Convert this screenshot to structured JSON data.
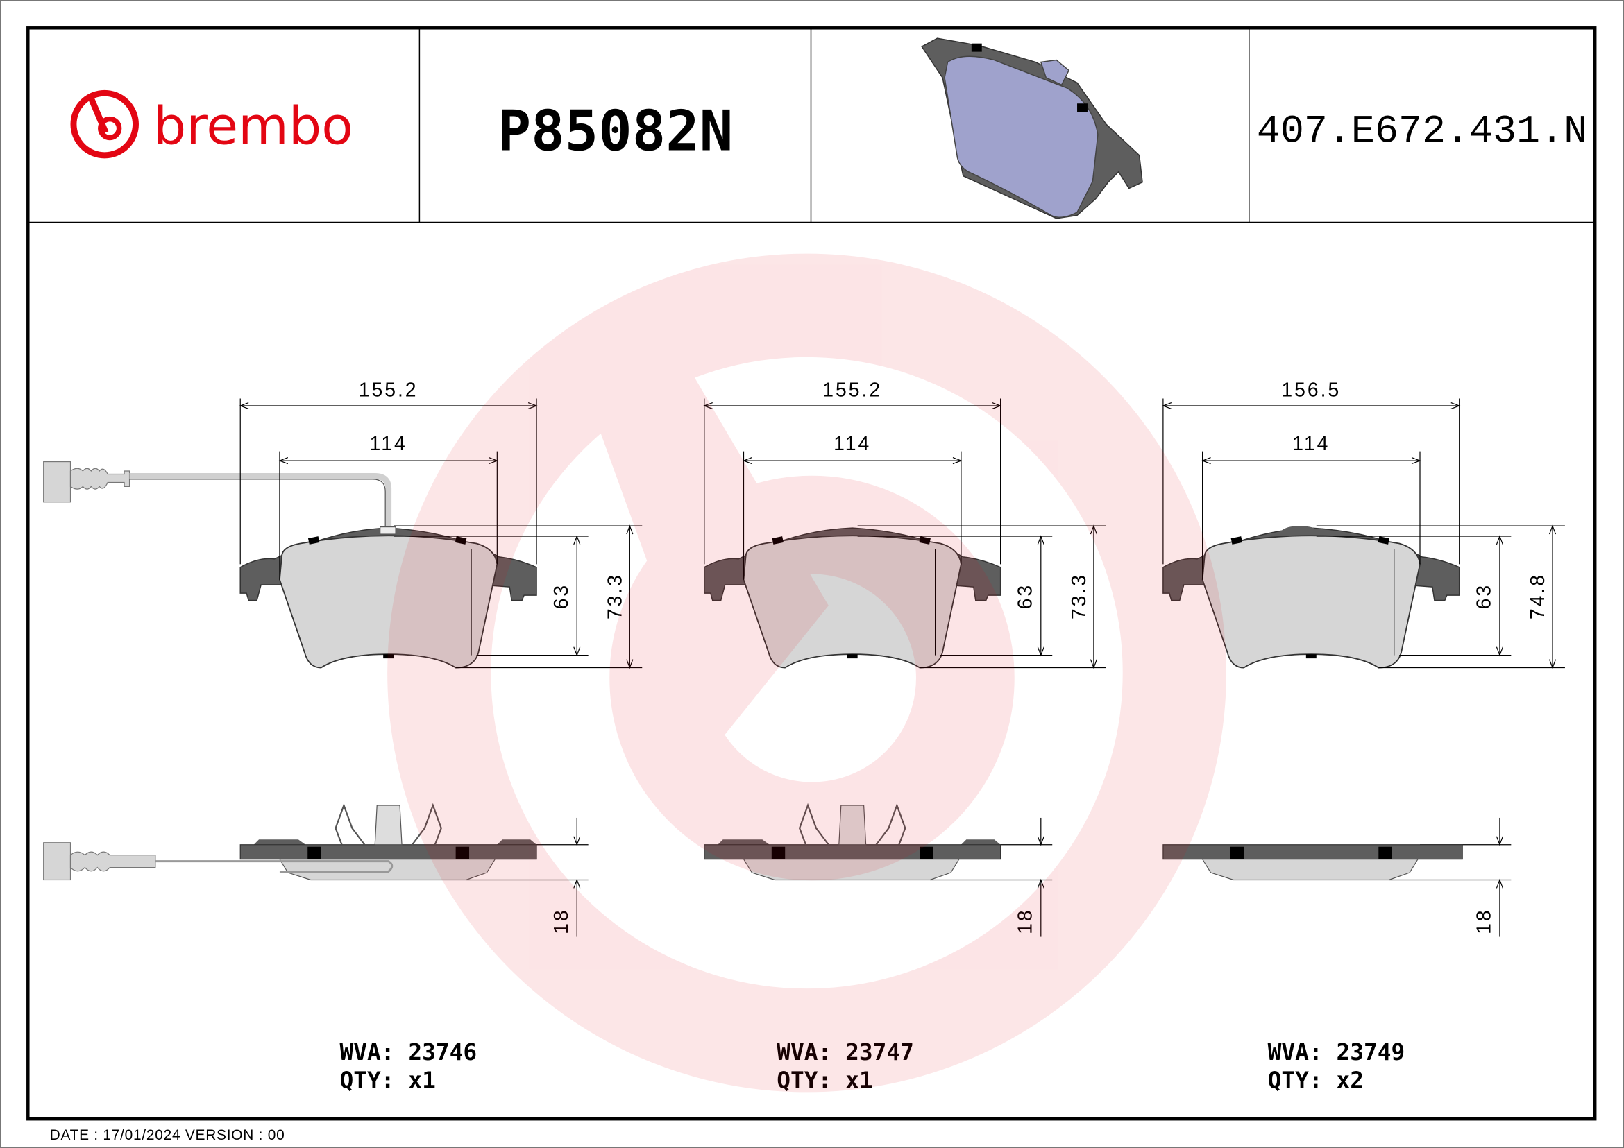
{
  "header": {
    "brand": "brembo",
    "brand_color": "#e30613",
    "part_number": "P85082N",
    "reference_code": "407.E672.431.N"
  },
  "pads": [
    {
      "width_total": "155.2",
      "width_inner": "114",
      "height_inner": "63",
      "height_total": "73.3",
      "thickness": "18",
      "wva_label": "WVA:",
      "wva": "23746",
      "qty_label": "QTY:",
      "qty": "x1",
      "sensor_wire": true,
      "spring_clip": true
    },
    {
      "width_total": "155.2",
      "width_inner": "114",
      "height_inner": "63",
      "height_total": "73.3",
      "thickness": "18",
      "wva_label": "WVA:",
      "wva": "23747",
      "qty_label": "QTY:",
      "qty": "x1",
      "sensor_wire": false,
      "spring_clip": true
    },
    {
      "width_total": "156.5",
      "width_inner": "114",
      "height_inner": "63",
      "height_total": "74.8",
      "thickness": "18",
      "wva_label": "WVA:",
      "wva": "23749",
      "qty_label": "QTY:",
      "qty": "x2",
      "sensor_wire": false,
      "spring_clip": false
    }
  ],
  "footer": {
    "date_label": "DATE :",
    "date": "17/01/2024",
    "version_label": "VERSION :",
    "version": "00"
  },
  "colors": {
    "backing_plate": "#5e5e5e",
    "friction": "#d6d6d6",
    "pad_preview": "#9fa2cc"
  }
}
